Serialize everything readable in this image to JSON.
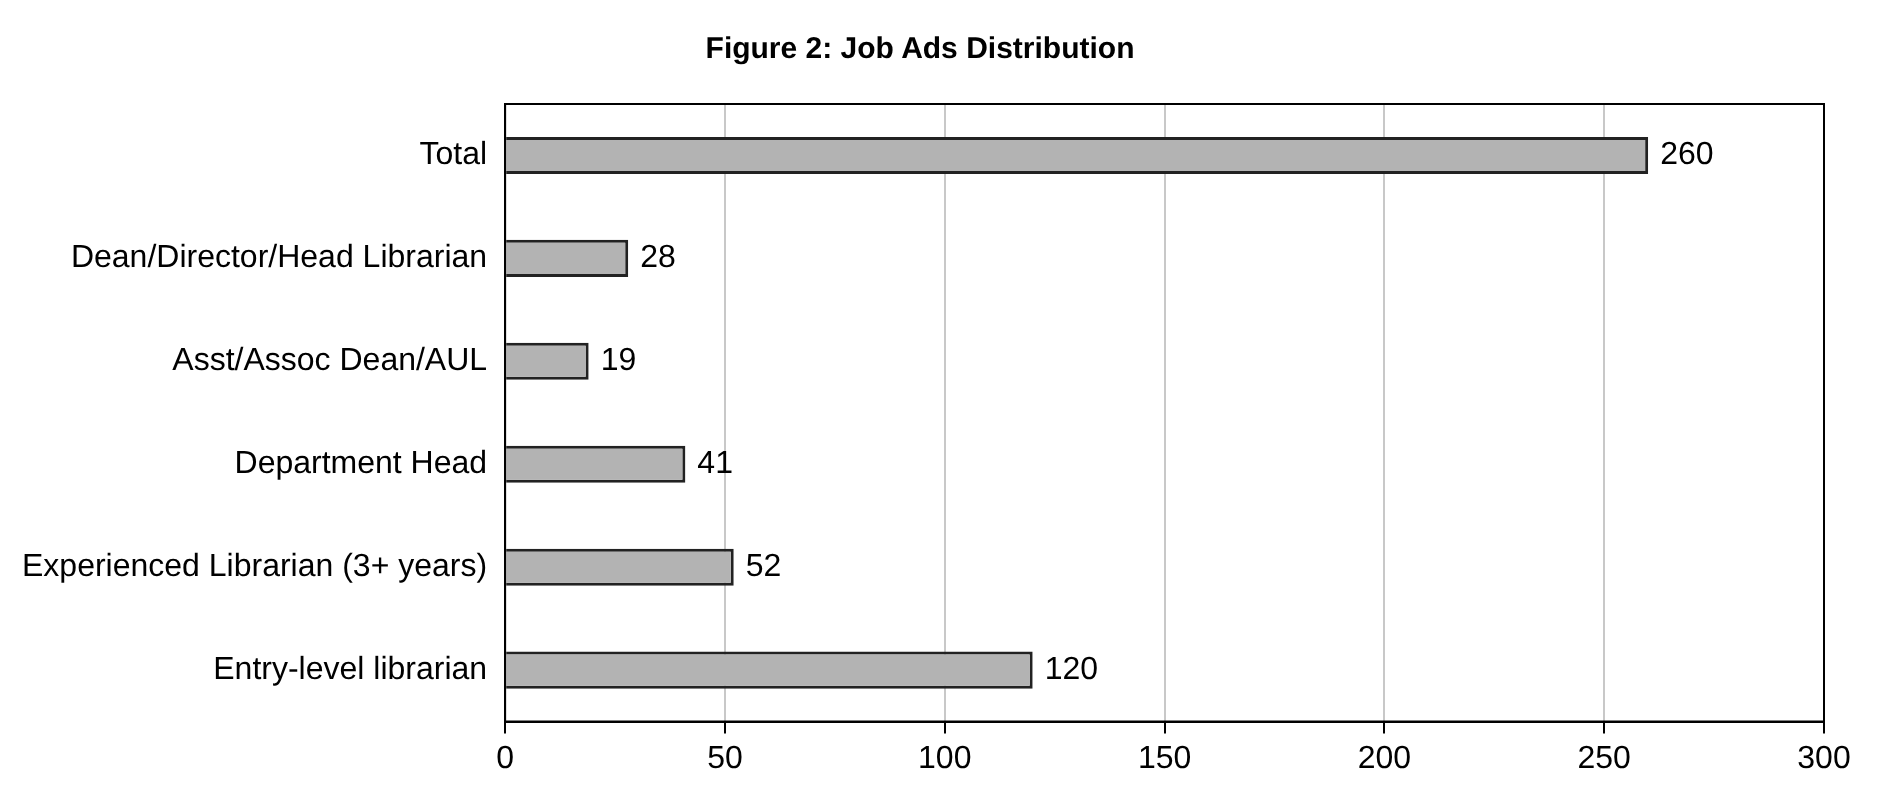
{
  "chart_data": {
    "type": "bar",
    "orientation": "horizontal",
    "title": "Figure 2: Job Ads Distribution",
    "categories": [
      "Total",
      "Dean/Director/Head Librarian",
      "Asst/Assoc Dean/AUL",
      "Department Head",
      "Experienced Librarian (3+ years)",
      "Entry-level librarian"
    ],
    "values": [
      260,
      28,
      19,
      41,
      52,
      120
    ],
    "color": "#b3b3b3",
    "xlim": [
      0,
      300
    ],
    "xticks": [
      0,
      50,
      100,
      150,
      200,
      250,
      300
    ],
    "grid": "x",
    "data_labels": true,
    "legend": false
  }
}
